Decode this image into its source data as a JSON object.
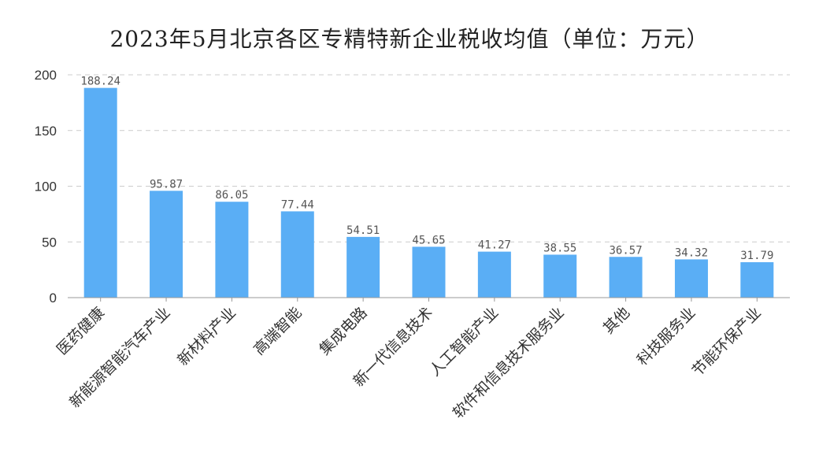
{
  "chart_data": {
    "type": "bar",
    "title": "2023年5月北京各区专精特新企业税收均值（单位：万元）",
    "categories": [
      "医药健康",
      "新能源智能汽车产业",
      "新材料产业",
      "高端智能",
      "集成电路",
      "新一代信息技术",
      "人工智能产业",
      "软件和信息技术服务业",
      "其他",
      "科技服务业",
      "节能环保产业"
    ],
    "values": [
      188.24,
      95.87,
      86.05,
      77.44,
      54.51,
      45.65,
      41.27,
      38.55,
      36.57,
      34.32,
      31.79
    ],
    "value_labels": [
      "188.24",
      "95.87",
      "86.05",
      "77.44",
      "54.51",
      "45.65",
      "41.27",
      "38.55",
      "36.57",
      "34.32",
      "31.79"
    ],
    "ylim": [
      0,
      200
    ],
    "yticks": [
      "0",
      "50",
      "100",
      "150",
      "200"
    ],
    "grid": true,
    "bar_color": "#5aaef5"
  }
}
